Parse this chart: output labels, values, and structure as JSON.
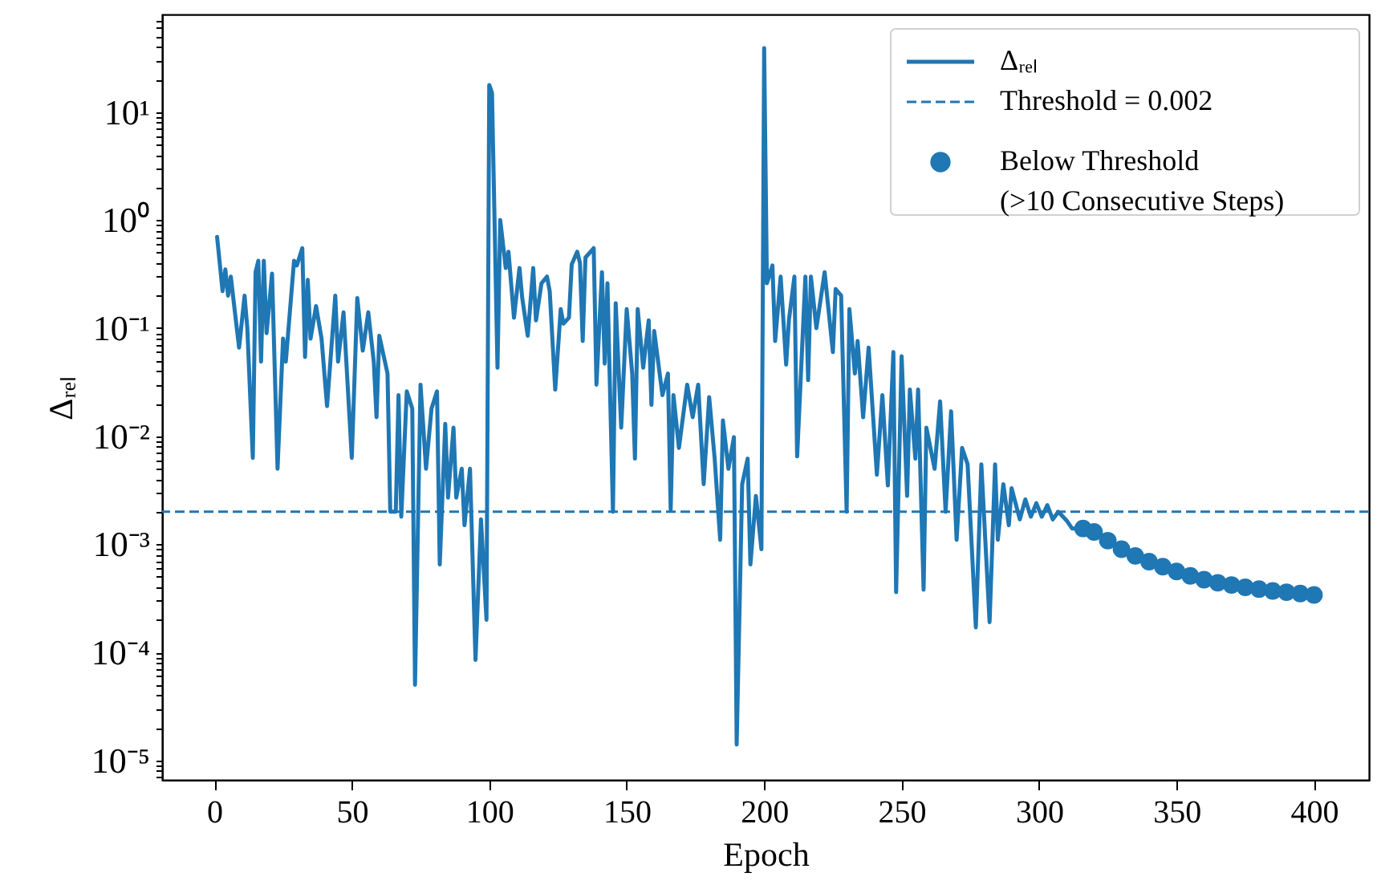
{
  "chart_data": {
    "type": "line",
    "xlabel": "Epoch",
    "ylabel": "Δᵣₑₗ",
    "xlim": [
      -19,
      420
    ],
    "xticks": [
      0,
      50,
      100,
      150,
      200,
      250,
      300,
      350,
      400
    ],
    "ylim": [
      6.6e-06,
      80
    ],
    "log": true,
    "yticks": [
      {
        "value": 7e-06,
        "label": null
      },
      {
        "value": 8e-06,
        "label": null
      },
      {
        "value": 9e-06,
        "label": null
      },
      {
        "value": 1e-05,
        "label": "10⁻⁵"
      },
      {
        "value": 2e-05,
        "label": null
      },
      {
        "value": 3e-05,
        "label": null
      },
      {
        "value": 4e-05,
        "label": null
      },
      {
        "value": 5e-05,
        "label": null
      },
      {
        "value": 6e-05,
        "label": null
      },
      {
        "value": 7e-05,
        "label": null
      },
      {
        "value": 8e-05,
        "label": null
      },
      {
        "value": 9e-05,
        "label": null
      },
      {
        "value": 0.0001,
        "label": "10⁻⁴"
      },
      {
        "value": 0.0002,
        "label": null
      },
      {
        "value": 0.0003,
        "label": null
      },
      {
        "value": 0.0004,
        "label": null
      },
      {
        "value": 0.0005,
        "label": null
      },
      {
        "value": 0.0006,
        "label": null
      },
      {
        "value": 0.0007,
        "label": null
      },
      {
        "value": 0.0008,
        "label": null
      },
      {
        "value": 0.0009,
        "label": null
      },
      {
        "value": 0.001,
        "label": "10⁻³"
      },
      {
        "value": 0.002,
        "label": null
      },
      {
        "value": 0.003,
        "label": null
      },
      {
        "value": 0.004,
        "label": null
      },
      {
        "value": 0.005,
        "label": null
      },
      {
        "value": 0.006,
        "label": null
      },
      {
        "value": 0.007,
        "label": null
      },
      {
        "value": 0.008,
        "label": null
      },
      {
        "value": 0.009,
        "label": null
      },
      {
        "value": 0.01,
        "label": "10⁻²"
      },
      {
        "value": 0.02,
        "label": null
      },
      {
        "value": 0.03,
        "label": null
      },
      {
        "value": 0.04,
        "label": null
      },
      {
        "value": 0.05,
        "label": null
      },
      {
        "value": 0.06,
        "label": null
      },
      {
        "value": 0.07,
        "label": null
      },
      {
        "value": 0.08,
        "label": null
      },
      {
        "value": 0.09,
        "label": null
      },
      {
        "value": 0.1,
        "label": "10⁻¹"
      },
      {
        "value": 0.2,
        "label": null
      },
      {
        "value": 0.3,
        "label": null
      },
      {
        "value": 0.4,
        "label": null
      },
      {
        "value": 0.5,
        "label": null
      },
      {
        "value": 0.6,
        "label": null
      },
      {
        "value": 0.7,
        "label": null
      },
      {
        "value": 0.8,
        "label": null
      },
      {
        "value": 0.9,
        "label": null
      },
      {
        "value": 1,
        "label": "10⁰"
      },
      {
        "value": 2,
        "label": null
      },
      {
        "value": 3,
        "label": null
      },
      {
        "value": 4,
        "label": null
      },
      {
        "value": 5,
        "label": null
      },
      {
        "value": 6,
        "label": null
      },
      {
        "value": 7,
        "label": null
      },
      {
        "value": 8,
        "label": null
      },
      {
        "value": 9,
        "label": null
      },
      {
        "value": 10,
        "label": "10¹"
      },
      {
        "value": 20,
        "label": null
      },
      {
        "value": 30,
        "label": null
      },
      {
        "value": 40,
        "label": null
      },
      {
        "value": 50,
        "label": null
      },
      {
        "value": 60,
        "label": null
      },
      {
        "value": 70,
        "label": null
      }
    ],
    "grid": false,
    "legend": "top right",
    "ref_lines": [
      {
        "axis": "y",
        "value": 0.002,
        "label": "Threshold = 0.002",
        "color": "#1f77b4",
        "line_style": "dashed"
      }
    ],
    "series": [
      {
        "name": "Δᵣₑₗ",
        "color": "#1f77b4",
        "marker": "none",
        "line_style": "solid",
        "x": [
          1,
          3,
          4,
          5,
          6,
          7,
          9,
          11,
          12,
          14,
          15,
          16,
          17,
          18,
          19,
          21,
          23,
          25,
          26,
          29,
          30,
          32,
          33,
          34,
          35,
          37,
          39,
          41,
          44,
          45,
          47,
          50,
          52,
          54,
          56,
          58,
          59,
          60,
          63,
          64,
          66,
          67,
          68,
          70,
          72,
          73,
          75,
          77,
          79,
          81,
          82,
          84,
          85,
          87,
          88,
          90,
          91,
          93,
          95,
          97,
          99,
          100,
          101,
          103,
          104,
          106,
          107,
          109,
          111,
          112,
          114,
          116,
          117,
          119,
          121,
          122,
          124,
          126,
          127,
          129,
          130,
          132,
          133,
          134,
          135,
          138,
          139,
          141,
          142,
          143,
          145,
          146,
          148,
          150,
          152,
          153,
          154,
          156,
          158,
          159,
          160,
          163,
          165,
          166,
          167,
          169,
          172,
          174,
          176,
          178,
          180,
          182,
          184,
          185,
          187,
          189,
          190,
          192,
          194,
          195,
          197,
          199,
          200,
          201,
          203,
          204,
          206,
          208,
          209,
          211,
          212,
          215,
          216,
          217,
          219,
          222,
          225,
          226,
          228,
          230,
          231,
          233,
          234,
          236,
          238,
          241,
          243,
          245,
          247,
          248,
          250,
          252,
          253,
          255,
          256,
          258,
          259,
          262,
          264,
          266,
          268,
          270,
          272,
          274,
          277,
          279,
          282,
          284,
          285,
          287,
          289,
          290,
          293,
          295,
          297,
          299,
          301,
          303,
          305,
          307,
          310,
          312,
          316,
          320,
          325,
          330,
          335,
          340,
          345,
          350,
          355,
          360,
          365,
          370,
          375,
          380,
          385,
          390,
          395,
          400
        ],
        "values": [
          0.7,
          0.22,
          0.35,
          0.2,
          0.3,
          0.18,
          0.066,
          0.2,
          0.1,
          0.0063,
          0.33,
          0.42,
          0.049,
          0.42,
          0.09,
          0.32,
          0.005,
          0.08,
          0.049,
          0.42,
          0.38,
          0.55,
          0.054,
          0.28,
          0.08,
          0.16,
          0.08,
          0.019,
          0.2,
          0.049,
          0.14,
          0.0063,
          0.19,
          0.062,
          0.14,
          0.049,
          0.015,
          0.085,
          0.038,
          0.002,
          0.002,
          0.024,
          0.0018,
          0.026,
          0.018,
          5e-05,
          0.03,
          0.005,
          0.018,
          0.026,
          0.00065,
          0.013,
          0.0027,
          0.012,
          0.0027,
          0.005,
          0.0015,
          0.005,
          8.5e-05,
          0.0017,
          0.0002,
          17.8,
          15,
          0.043,
          1.0,
          0.36,
          0.51,
          0.125,
          0.36,
          0.19,
          0.085,
          0.36,
          0.118,
          0.26,
          0.3,
          0.22,
          0.027,
          0.15,
          0.11,
          0.125,
          0.39,
          0.51,
          0.4,
          0.076,
          0.45,
          0.55,
          0.03,
          0.33,
          0.047,
          0.26,
          0.002,
          0.17,
          0.012,
          0.15,
          0.038,
          0.0062,
          0.15,
          0.043,
          0.118,
          0.0195,
          0.094,
          0.024,
          0.038,
          0.0021,
          0.024,
          0.0078,
          0.03,
          0.015,
          0.03,
          0.0036,
          0.023,
          0.0062,
          0.0011,
          0.014,
          0.005,
          0.0098,
          1.4e-05,
          0.0036,
          0.0062,
          0.00065,
          0.0028,
          0.0009,
          39,
          0.26,
          0.38,
          0.076,
          0.3,
          0.046,
          0.118,
          0.3,
          0.0065,
          0.3,
          0.033,
          0.3,
          0.1,
          0.33,
          0.06,
          0.23,
          0.2,
          0.002,
          0.15,
          0.038,
          0.076,
          0.015,
          0.066,
          0.0044,
          0.024,
          0.0035,
          0.06,
          0.00036,
          0.055,
          0.0028,
          0.027,
          0.0062,
          0.027,
          0.00038,
          0.012,
          0.005,
          0.021,
          0.002,
          0.017,
          0.0011,
          0.0078,
          0.0055,
          0.00017,
          0.0055,
          0.00019,
          0.0055,
          0.0011,
          0.0036,
          0.0015,
          0.0033,
          0.0017,
          0.0026,
          0.0018,
          0.0024,
          0.0018,
          0.0023,
          0.0017,
          0.002,
          0.00166,
          0.0014,
          0.0014,
          0.0013,
          0.00108,
          0.0009,
          0.00078,
          0.00069,
          0.00062,
          0.00056,
          0.00051,
          0.00047,
          0.00044,
          0.00042,
          0.0004,
          0.000385,
          0.00037,
          0.00036,
          0.00035,
          0.00034
        ]
      },
      {
        "name": "Below Threshold\n(>10 Consecutive Steps)",
        "type": "scatter",
        "color": "#1f77b4",
        "marker": "circle",
        "x": [
          316,
          320,
          325,
          330,
          335,
          340,
          345,
          350,
          355,
          360,
          365,
          370,
          375,
          380,
          385,
          390,
          395,
          400
        ],
        "values": [
          0.0014,
          0.0013,
          0.00108,
          0.0009,
          0.00078,
          0.00069,
          0.00062,
          0.00056,
          0.00051,
          0.00047,
          0.00044,
          0.00042,
          0.0004,
          0.000385,
          0.00037,
          0.00036,
          0.00035,
          0.00034
        ]
      }
    ]
  }
}
